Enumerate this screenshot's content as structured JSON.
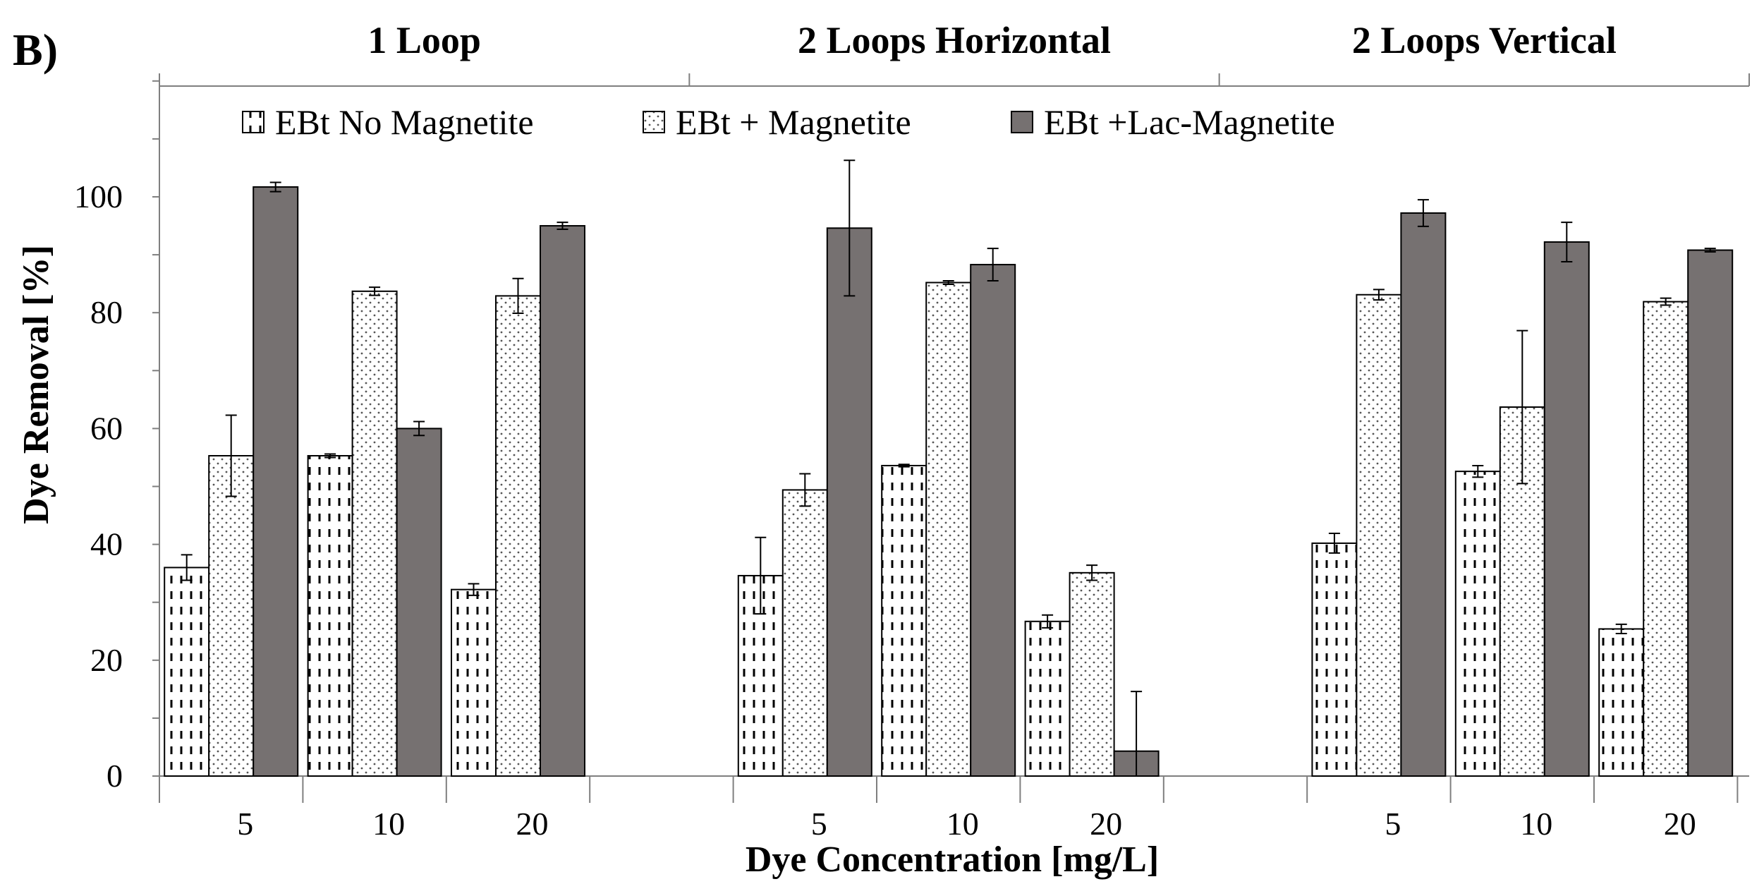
{
  "panel_label": "B)",
  "chart_data": {
    "type": "bar",
    "xlabel": "Dye Concentration [mg/L]",
    "ylabel": "Dye Removal [%]",
    "ylim": [
      0,
      120
    ],
    "yticks": [
      0,
      20,
      40,
      60,
      80,
      100
    ],
    "grid": false,
    "legend_position": "top",
    "series": [
      {
        "name": "EBt No Magnetite",
        "pattern": "dashes",
        "color": "#ffffff"
      },
      {
        "name": "EBt + Magnetite",
        "pattern": "dots",
        "color": "#ffffff"
      },
      {
        "name": "EBt +Lac-Magnetite",
        "pattern": "solid",
        "color": "#767171"
      }
    ],
    "groups": [
      {
        "title": "1 Loop",
        "categories": [
          {
            "label": "5",
            "values": [
              36,
              55.3,
              101.7
            ],
            "errors": [
              2.2,
              7.0,
              0.8
            ]
          },
          {
            "label": "10",
            "values": [
              55.3,
              83.7,
              60
            ],
            "errors": [
              0.3,
              0.7,
              1.2
            ]
          },
          {
            "label": "20",
            "values": [
              32.2,
              82.9,
              95
            ],
            "errors": [
              1.0,
              3.0,
              0.6
            ]
          }
        ]
      },
      {
        "title": "2 Loops Horizontal",
        "categories": [
          {
            "label": "5",
            "values": [
              34.6,
              49.4,
              94.6
            ],
            "errors": [
              6.6,
              2.8,
              11.7
            ]
          },
          {
            "label": "10",
            "values": [
              53.6,
              85.2,
              88.3
            ],
            "errors": [
              0.2,
              0.3,
              2.8
            ]
          },
          {
            "label": "20",
            "values": [
              26.7,
              35.1,
              4.3
            ],
            "errors": [
              1.1,
              1.3,
              10.3
            ]
          }
        ]
      },
      {
        "title": "2 Loops Vertical",
        "categories": [
          {
            "label": "5",
            "values": [
              40.2,
              83.1,
              97.2
            ],
            "errors": [
              1.7,
              0.9,
              2.3
            ]
          },
          {
            "label": "10",
            "values": [
              52.6,
              63.7,
              92.2
            ],
            "errors": [
              1.0,
              13.2,
              3.4
            ]
          },
          {
            "label": "20",
            "values": [
              25.4,
              81.9,
              90.8
            ],
            "errors": [
              0.8,
              0.6,
              0.3
            ]
          }
        ]
      }
    ]
  }
}
